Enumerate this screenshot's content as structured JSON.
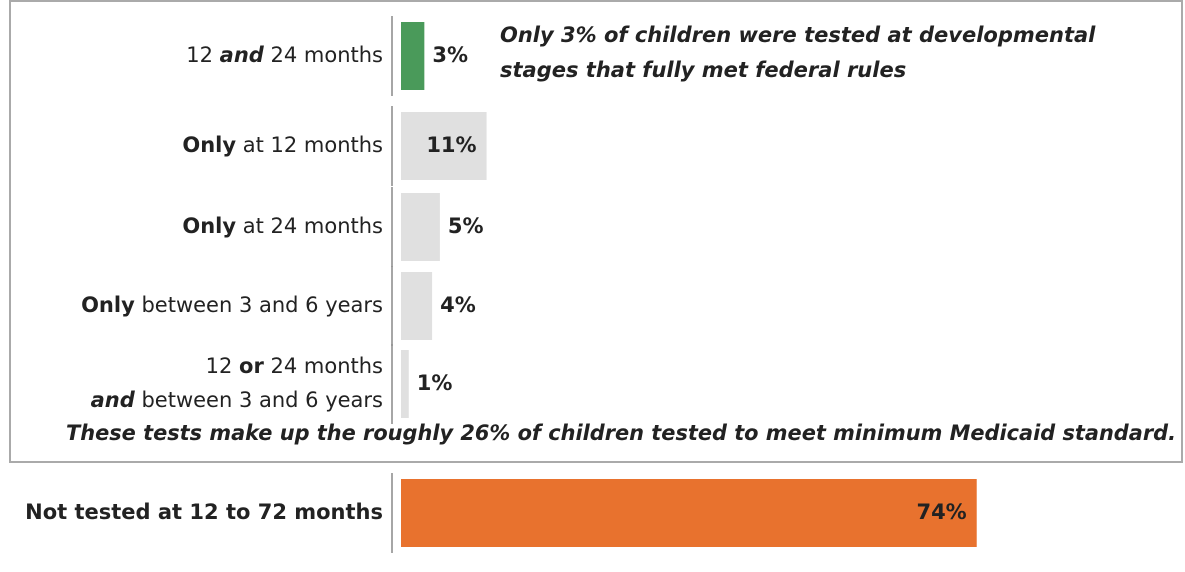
{
  "chart_data": {
    "type": "bar",
    "orientation": "horizontal",
    "categories": [
      [
        [
          {
            "text": "12 "
          },
          {
            "text": "and",
            "style": "bold-italic"
          },
          {
            "text": " 24 months"
          }
        ]
      ],
      [
        [
          {
            "text": "Only",
            "style": "bold"
          },
          {
            "text": " at 12 months"
          }
        ]
      ],
      [
        [
          {
            "text": "Only",
            "style": "bold"
          },
          {
            "text": " at 24 months"
          }
        ]
      ],
      [
        [
          {
            "text": "Only",
            "style": "bold"
          },
          {
            "text": " between 3 and 6 years"
          }
        ]
      ],
      [
        [
          {
            "text": "12 "
          },
          {
            "text": "or",
            "style": "bold"
          },
          {
            "text": " 24 months"
          }
        ],
        [
          {
            "text": "and",
            "style": "bold-italic"
          },
          {
            "text": " between 3 and 6 years"
          }
        ]
      ],
      [
        [
          {
            "text": "Not tested at 12 to 72 months",
            "style": "bold"
          }
        ]
      ]
    ],
    "values": [
      3,
      11,
      5,
      4,
      1,
      74
    ],
    "value_labels": [
      "3%",
      "11%",
      "5%",
      "4%",
      "1%",
      "74%"
    ],
    "colors": [
      "#4a9a5a",
      "#e0e0e0",
      "#e0e0e0",
      "#e0e0e0",
      "#e0e0e0",
      "#e8722e"
    ],
    "annotations": [
      {
        "lines": [
          "Only 3% of children were tested at developmental",
          "stages that fully met federal rules"
        ],
        "color": "#4a9a5a"
      },
      {
        "lines": [
          "These tests make up the roughly 26% of children tested to meet minimum Medicaid standard."
        ],
        "color": "#777777"
      }
    ]
  }
}
